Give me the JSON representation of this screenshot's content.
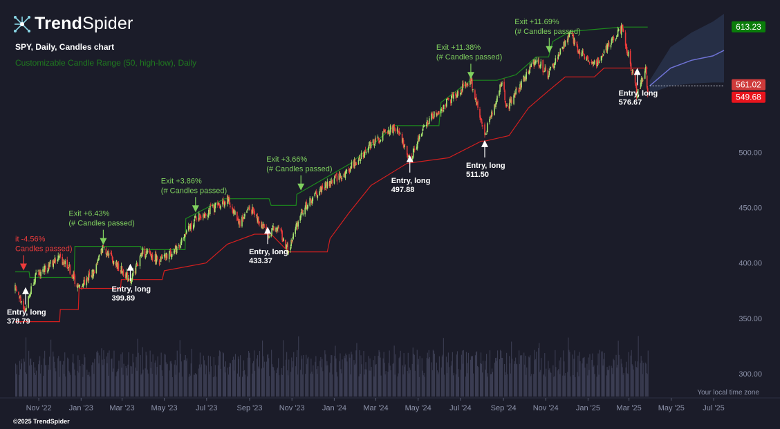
{
  "brand": {
    "logo_bold": "Trend",
    "logo_light": "Spider"
  },
  "header": {
    "title": "SPY, Daily, Candles chart",
    "indicator": "Customizable Candle Range (50, high-low), Daily"
  },
  "footer": {
    "copyright": "©2025 TrendSpider",
    "timezone": "Your local time zone"
  },
  "colors": {
    "background": "#1b1c29",
    "bull": "#a7e36f",
    "bear": "#ee3b3b",
    "upper_band": "#1d8a1d",
    "lower_band": "#d31f1f",
    "exit_label": "#7fd05e",
    "forecast": "#6f73d6",
    "volume": "#3b3d52"
  },
  "chart_data": {
    "type": "candlestick",
    "symbol": "SPY",
    "timeframe": "Daily",
    "ylim": [
      285,
      625
    ],
    "y_ticks": [
      "300.00",
      "350.00",
      "400.00",
      "450.00",
      "500.00"
    ],
    "x_ticks": [
      "Nov '22",
      "Jan '23",
      "Mar '23",
      "May '23",
      "Jul '23",
      "Sep '23",
      "Nov '23",
      "Jan '24",
      "Mar '24",
      "May '24",
      "Jul '24",
      "Sep '24",
      "Nov '24",
      "Jan '25",
      "Mar '25",
      "May '25",
      "Jul '25"
    ],
    "price_tags": [
      {
        "value": "613.23",
        "color": "#0a7d0a"
      },
      {
        "value": "561.02",
        "color": "#cf3b3b"
      },
      {
        "value": "549.68",
        "color": "#e8141d"
      }
    ],
    "close_path": [
      [
        "2022-09-28",
        376
      ],
      [
        "2022-10-13",
        358
      ],
      [
        "2022-10-25",
        386
      ],
      [
        "2022-11-10",
        395
      ],
      [
        "2022-11-30",
        405
      ],
      [
        "2022-12-13",
        398
      ],
      [
        "2022-12-28",
        377
      ],
      [
        "2023-01-20",
        393
      ],
      [
        "2023-02-02",
        415
      ],
      [
        "2023-02-24",
        396
      ],
      [
        "2023-03-13",
        385
      ],
      [
        "2023-03-31",
        410
      ],
      [
        "2023-04-25",
        402
      ],
      [
        "2023-05-18",
        412
      ],
      [
        "2023-06-15",
        440
      ],
      [
        "2023-07-31",
        457
      ],
      [
        "2023-08-18",
        436
      ],
      [
        "2023-09-01",
        451
      ],
      [
        "2023-09-27",
        427
      ],
      [
        "2023-10-13",
        432
      ],
      [
        "2023-10-27",
        410
      ],
      [
        "2023-11-14",
        446
      ],
      [
        "2023-12-15",
        468
      ],
      [
        "2024-01-19",
        482
      ],
      [
        "2024-02-22",
        507
      ],
      [
        "2024-03-28",
        523
      ],
      [
        "2024-04-19",
        495
      ],
      [
        "2024-05-15",
        528
      ],
      [
        "2024-07-16",
        565
      ],
      [
        "2024-08-05",
        515
      ],
      [
        "2024-08-30",
        564
      ],
      [
        "2024-09-06",
        540
      ],
      [
        "2024-10-18",
        584
      ],
      [
        "2024-11-04",
        569
      ],
      [
        "2024-12-06",
        607
      ],
      [
        "2024-12-20",
        590
      ],
      [
        "2025-01-13",
        581
      ],
      [
        "2025-02-19",
        613
      ],
      [
        "2025-03-13",
        551
      ],
      [
        "2025-03-25",
        576
      ],
      [
        "2025-03-28",
        555
      ]
    ],
    "upper_band": [
      [
        "2022-09-28",
        392
      ],
      [
        "2022-10-18",
        392
      ],
      [
        "2022-10-19",
        387
      ],
      [
        "2022-12-22",
        387
      ],
      [
        "2022-12-23",
        415
      ],
      [
        "2023-03-28",
        415
      ],
      [
        "2023-03-29",
        412
      ],
      [
        "2023-05-31",
        412
      ],
      [
        "2023-06-01",
        440
      ],
      [
        "2023-07-27",
        458
      ],
      [
        "2023-09-29",
        458
      ],
      [
        "2023-10-02",
        452
      ],
      [
        "2023-11-07",
        452
      ],
      [
        "2023-11-08",
        462
      ],
      [
        "2024-01-25",
        490
      ],
      [
        "2024-03-28",
        524
      ],
      [
        "2024-05-31",
        524
      ],
      [
        "2024-06-03",
        545
      ],
      [
        "2024-07-16",
        565
      ],
      [
        "2024-08-23",
        565
      ],
      [
        "2024-09-19",
        570
      ],
      [
        "2024-10-18",
        586
      ],
      [
        "2024-11-05",
        586
      ],
      [
        "2024-11-11",
        600
      ],
      [
        "2024-12-06",
        609
      ],
      [
        "2025-02-19",
        613
      ],
      [
        "2025-03-28",
        613
      ]
    ],
    "lower_band": [
      [
        "2022-09-28",
        347
      ],
      [
        "2022-12-01",
        347
      ],
      [
        "2022-12-02",
        358
      ],
      [
        "2022-12-28",
        358
      ],
      [
        "2022-12-29",
        377
      ],
      [
        "2023-02-27",
        377
      ],
      [
        "2023-02-28",
        385
      ],
      [
        "2023-04-28",
        385
      ],
      [
        "2023-05-01",
        393
      ],
      [
        "2023-06-30",
        400
      ],
      [
        "2023-07-31",
        417
      ],
      [
        "2023-09-08",
        426
      ],
      [
        "2023-09-11",
        426
      ],
      [
        "2023-10-02",
        426
      ],
      [
        "2023-10-27",
        410
      ],
      [
        "2023-12-22",
        410
      ],
      [
        "2023-12-26",
        422
      ],
      [
        "2024-01-22",
        445
      ],
      [
        "2024-02-23",
        470
      ],
      [
        "2024-04-15",
        490
      ],
      [
        "2024-06-14",
        495
      ],
      [
        "2024-07-31",
        510
      ],
      [
        "2024-08-05",
        510
      ],
      [
        "2024-09-09",
        515
      ],
      [
        "2024-10-07",
        540
      ],
      [
        "2024-11-04",
        555
      ],
      [
        "2024-11-29",
        568
      ],
      [
        "2025-01-10",
        568
      ],
      [
        "2025-01-24",
        576
      ],
      [
        "2025-03-28",
        576
      ]
    ],
    "forecast": {
      "x": [
        "2025-03-31",
        "2025-04-30",
        "2025-05-30",
        "2025-06-30",
        "2025-07-16"
      ],
      "mean": [
        560,
        576,
        583,
        587,
        592
      ],
      "upper": [
        565,
        595,
        608,
        618,
        625
      ],
      "lower": [
        553,
        560,
        562,
        563,
        563
      ]
    },
    "signals": [
      {
        "type": "entry",
        "date": "2022-10-13",
        "price": "378.79",
        "text": "Entry, long"
      },
      {
        "type": "entry",
        "date": "2023-03-13",
        "price": "399.89",
        "text": "Entry, long"
      },
      {
        "type": "entry",
        "date": "2023-09-27",
        "price": "433.37",
        "text": "Entry, long"
      },
      {
        "type": "entry",
        "date": "2024-04-19",
        "price": "497.88",
        "text": "Entry, long"
      },
      {
        "type": "entry",
        "date": "2024-08-05",
        "price": "511.50",
        "text": "Entry, long"
      },
      {
        "type": "entry",
        "date": "2025-03-13",
        "price": "576.67",
        "text": "Entry, long"
      },
      {
        "type": "exit",
        "date": "2022-10-10",
        "pct": "it -4.56%",
        "text": "Candles passed)",
        "loss": true
      },
      {
        "type": "exit",
        "date": "2023-02-02",
        "pct": "Exit +6.43%",
        "text": "(# Candles passed)"
      },
      {
        "type": "exit",
        "date": "2023-06-15",
        "pct": "Exit +3.86%",
        "text": "(# Candles passed)"
      },
      {
        "type": "exit",
        "date": "2023-11-14",
        "pct": "Exit +3.66%",
        "text": "(# Candles passed)"
      },
      {
        "type": "exit",
        "date": "2024-07-16",
        "pct": "Exit +11.38%",
        "text": "(# Candles passed)"
      },
      {
        "type": "exit",
        "date": "2024-11-06",
        "pct": "Exit +11.69%",
        "text": "(# Candles passed)"
      }
    ]
  }
}
